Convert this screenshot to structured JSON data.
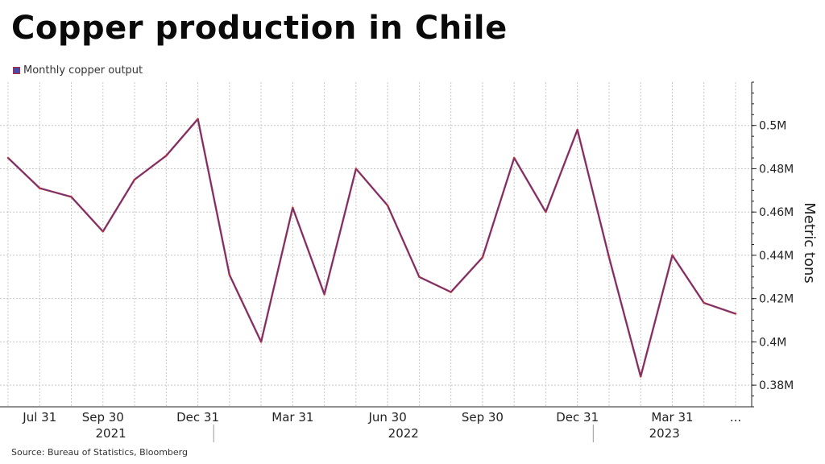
{
  "title": "Copper production in Chile",
  "legend": "Monthly copper output",
  "source": "Source: Bureau of Statistics, Bloomberg",
  "colors": {
    "line_outer": "#c0303c",
    "line_inner": "#3a3aa0",
    "grid": "#c8c8c8"
  },
  "chart_data": {
    "type": "line",
    "ylabel": "Metric tons",
    "ylim": [
      370000,
      520000
    ],
    "yticks": [
      380000,
      400000,
      420000,
      440000,
      460000,
      480000,
      500000
    ],
    "ytick_labels": [
      "0.38M",
      "0.4M",
      "0.42M",
      "0.44M",
      "0.46M",
      "0.48M",
      "0.5M"
    ],
    "x": [
      "2021-06-30",
      "2021-07-31",
      "2021-08-31",
      "2021-09-30",
      "2021-10-31",
      "2021-11-30",
      "2021-12-31",
      "2022-01-31",
      "2022-02-28",
      "2022-03-31",
      "2022-04-30",
      "2022-05-31",
      "2022-06-30",
      "2022-07-31",
      "2022-08-31",
      "2022-09-30",
      "2022-10-31",
      "2022-11-30",
      "2022-12-31",
      "2023-01-31",
      "2023-02-28",
      "2023-03-31",
      "2023-04-30",
      "2023-05-31"
    ],
    "series": [
      {
        "name": "Monthly copper output",
        "values": [
          485000,
          471000,
          467000,
          451000,
          475000,
          486000,
          503000,
          431000,
          400000,
          462000,
          422000,
          480000,
          463000,
          430000,
          423000,
          439000,
          485000,
          460000,
          498000,
          439000,
          384000,
          440000,
          418000,
          413000
        ]
      }
    ],
    "xtick_labels": [
      {
        "label": "Jul 31",
        "index": 1
      },
      {
        "label": "Sep 30",
        "index": 3
      },
      {
        "label": "Dec 31",
        "index": 6
      },
      {
        "label": "Mar 31",
        "index": 9
      },
      {
        "label": "Jun 30",
        "index": 12
      },
      {
        "label": "Sep 30",
        "index": 15
      },
      {
        "label": "Dec 31",
        "index": 18
      },
      {
        "label": "Mar 31",
        "index": 21
      },
      {
        "label": "...",
        "index": 23
      }
    ],
    "years": [
      {
        "label": "2021",
        "from": 0,
        "to": 6.5
      },
      {
        "label": "2022",
        "from": 6.5,
        "to": 18.5
      },
      {
        "label": "2023",
        "from": 18.5,
        "to": 23
      }
    ],
    "grid": true
  }
}
